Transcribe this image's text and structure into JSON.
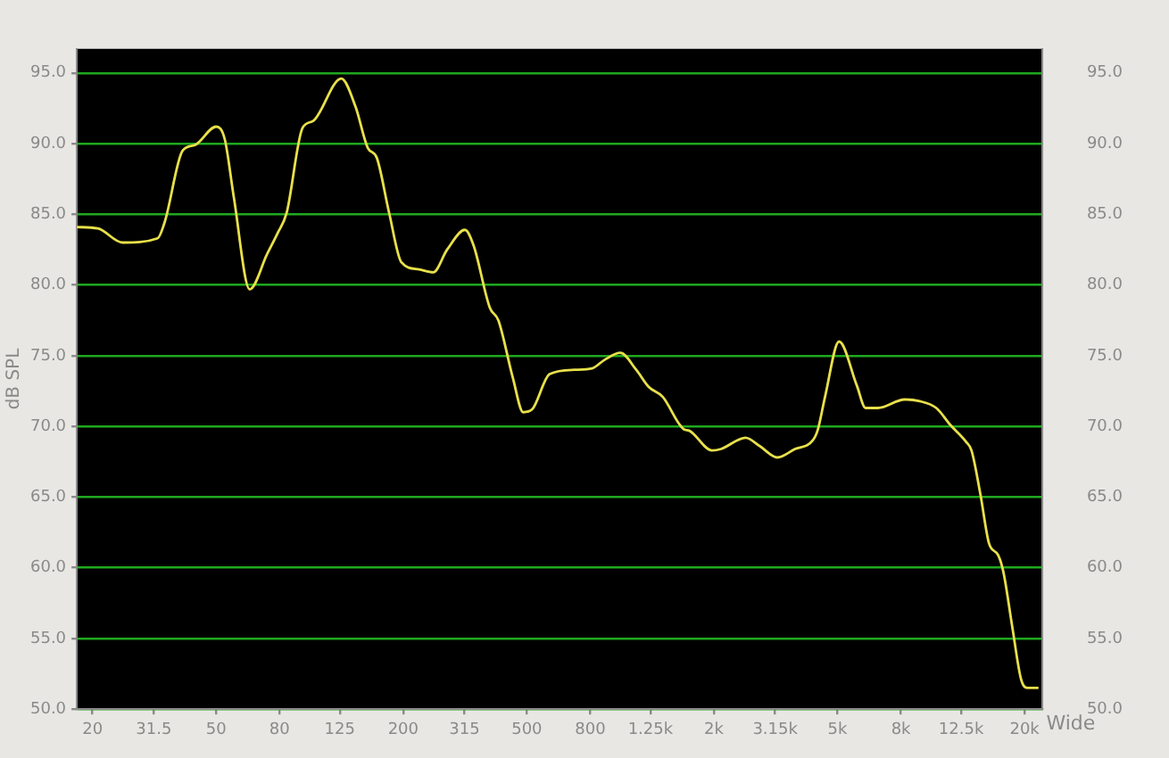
{
  "chart_data": {
    "type": "line",
    "ylabel": "dB SPL",
    "log": "x",
    "grid": "y",
    "legend": false,
    "marker": "none",
    "line_style": "solid",
    "xlim": [
      17.8,
      22800
    ],
    "ylim": [
      50,
      96.7
    ],
    "y2lim": [
      50,
      96.7
    ],
    "xticks": [
      20,
      31.5,
      50,
      80,
      125,
      200,
      315,
      500,
      800,
      {
        "value": 1250,
        "label": "1.25k"
      },
      {
        "value": 2000,
        "label": "2k"
      },
      {
        "value": 3150,
        "label": "3.15k"
      },
      {
        "value": 5000,
        "label": "5k"
      },
      {
        "value": 8000,
        "label": "8k"
      },
      {
        "value": 12500,
        "label": "12.5k"
      },
      {
        "value": 20000,
        "label": "20k"
      }
    ],
    "yticks": [
      {
        "value": 50,
        "label": "50.0"
      },
      {
        "value": 55,
        "label": "55.0"
      },
      {
        "value": 60,
        "label": "60.0"
      },
      {
        "value": 65,
        "label": "65.0"
      },
      {
        "value": 70,
        "label": "70.0"
      },
      {
        "value": 75,
        "label": "75.0"
      },
      {
        "value": 80,
        "label": "80.0"
      },
      {
        "value": 85,
        "label": "85.0"
      },
      {
        "value": 90,
        "label": "90.0"
      },
      {
        "value": 95,
        "label": "95.0"
      }
    ],
    "y2ticks": [
      {
        "value": 50,
        "label": "50.0"
      },
      {
        "value": 55,
        "label": "55.0"
      },
      {
        "value": 60,
        "label": "60.0"
      },
      {
        "value": 65,
        "label": "65.0"
      },
      {
        "value": 70,
        "label": "70.0"
      },
      {
        "value": 75,
        "label": "75.0"
      },
      {
        "value": 80,
        "label": "80.0"
      },
      {
        "value": 85,
        "label": "85.0"
      },
      {
        "value": 90,
        "label": "90.0"
      },
      {
        "value": 95,
        "label": "95.0"
      }
    ],
    "annotations": [
      "Wide"
    ],
    "series": [
      {
        "color": "#e8e04a",
        "x": [
          17.8,
          20.8,
          25,
          32.4,
          34.2,
          39,
          42.7,
          50,
          53.3,
          57,
          64.1,
          73,
          79,
          84.3,
          94.8,
          102.6,
          126.4,
          140.5,
          153.8,
          164.4,
          180.2,
          197.4,
          225,
          250,
          277,
          316,
          337,
          380,
          405,
          450,
          487,
          520,
          592,
          711,
          811,
          889,
          1000,
          1125,
          1233,
          1368,
          1600,
          1664,
          1972,
          2108,
          2530,
          2812,
          3202,
          3648,
          4160,
          4326,
          4560,
          5060,
          5768,
          6160,
          6748,
          8220,
          9120,
          10400,
          11540,
          12980,
          13500,
          14420,
          15380,
          16440,
          17100,
          18240,
          19500,
          20520,
          22180
        ],
        "values": [
          84.1,
          84.0,
          83.0,
          83.3,
          84.5,
          89.5,
          89.9,
          91.2,
          90.3,
          86.2,
          79.7,
          82.2,
          83.7,
          85.1,
          91.1,
          91.6,
          94.6,
          92.6,
          89.7,
          89.0,
          85.1,
          81.6,
          81.1,
          80.9,
          82.5,
          83.9,
          82.8,
          78.4,
          77.5,
          73.5,
          71.0,
          71.2,
          73.7,
          74.0,
          74.1,
          74.7,
          75.2,
          74.0,
          72.8,
          72.1,
          69.8,
          69.7,
          68.3,
          68.4,
          69.2,
          68.6,
          67.8,
          68.4,
          69.0,
          69.8,
          72.1,
          76.0,
          72.9,
          71.3,
          71.3,
          71.9,
          71.8,
          71.3,
          70.1,
          68.9,
          68.3,
          65.2,
          61.7,
          60.9,
          59.7,
          55.9,
          52.1,
          51.5,
          51.5
        ]
      }
    ]
  }
}
